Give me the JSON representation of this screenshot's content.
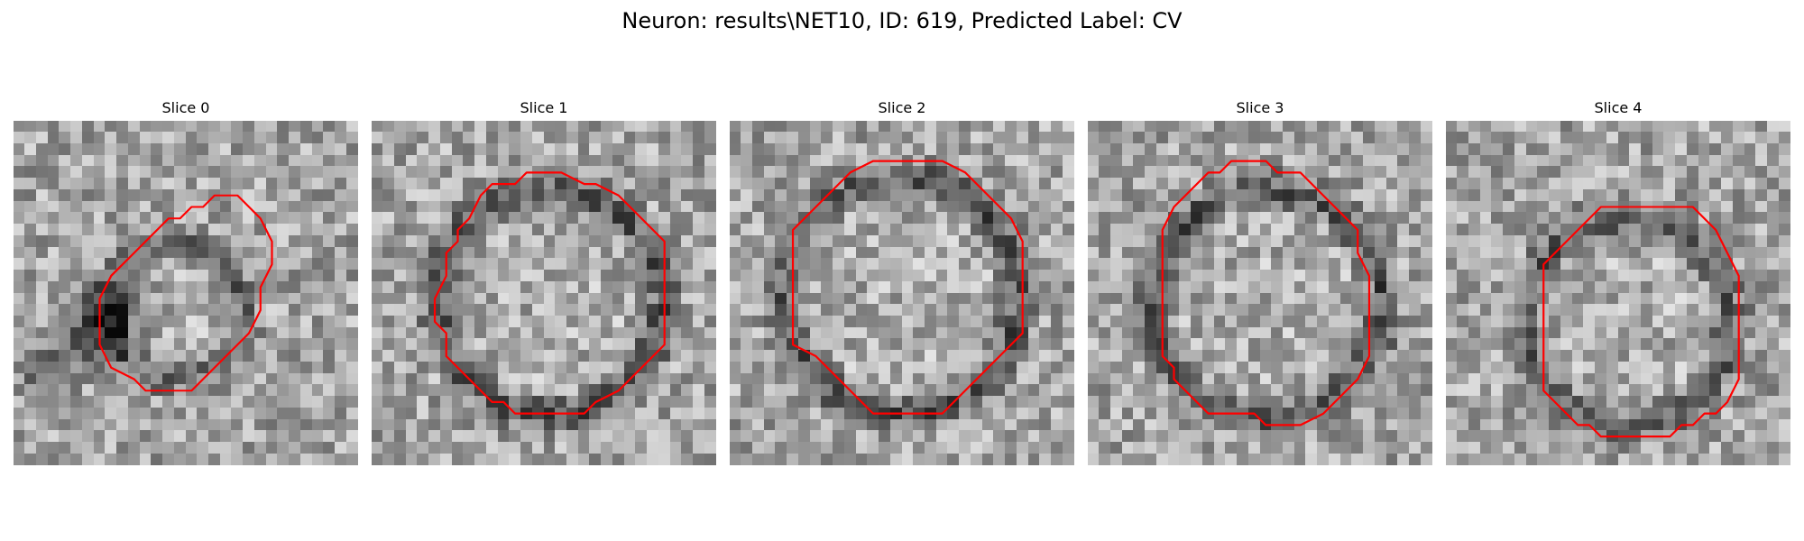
{
  "figure": {
    "title": "Neuron: results\\NET10, ID: 619, Predicted Label: CV",
    "contour_color": "#ff0000"
  },
  "slices": [
    {
      "title": "Slice 0"
    },
    {
      "title": "Slice 1"
    },
    {
      "title": "Slice 2"
    },
    {
      "title": "Slice 3"
    },
    {
      "title": "Slice 4"
    }
  ]
}
